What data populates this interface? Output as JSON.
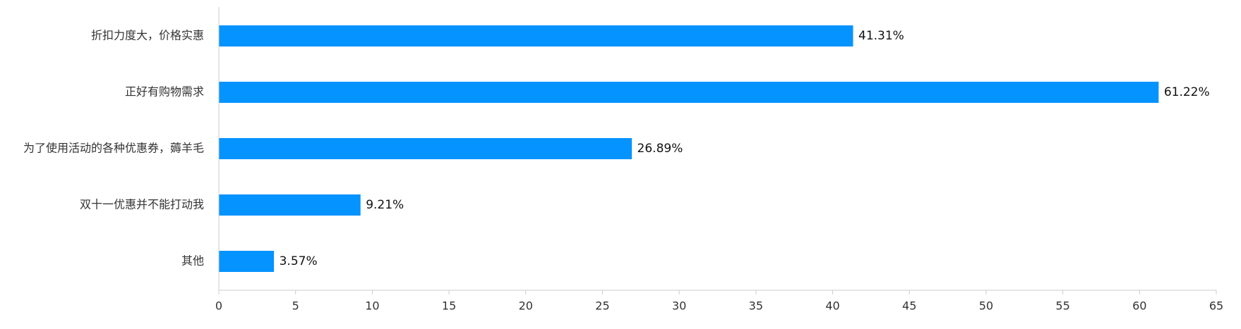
{
  "chart_data": {
    "type": "bar",
    "orientation": "horizontal",
    "categories": [
      "折扣力度大，价格实惠",
      "正好有购物需求",
      "为了使用活动的各种优惠券，薅羊毛",
      "双十一优惠并不能打动我",
      "其他"
    ],
    "values": [
      41.31,
      61.22,
      26.89,
      9.21,
      3.57
    ],
    "value_labels": [
      "41.31%",
      "61.22%",
      "26.89%",
      "9.21%",
      "3.57%"
    ],
    "xlim": [
      0,
      65
    ],
    "x_ticks": [
      0,
      5,
      10,
      15,
      20,
      25,
      30,
      35,
      40,
      45,
      50,
      55,
      60,
      65
    ],
    "bar_color": "#0593ff",
    "grid": false,
    "legend": "none"
  }
}
